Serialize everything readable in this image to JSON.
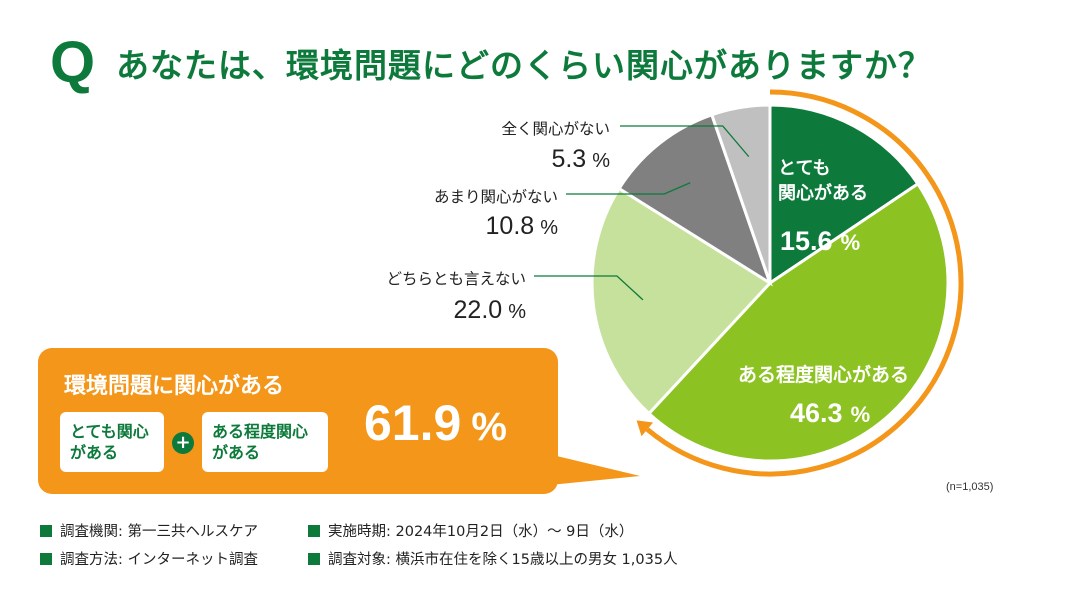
{
  "title": {
    "q": "Q",
    "text": "あなたは、環境問題にどのくらい関心がありますか？"
  },
  "chart_data": {
    "type": "pie",
    "unit": "%",
    "slices": [
      {
        "label": "とても関心がある",
        "display_label": "とても\n関心がある",
        "value": 15.6,
        "color": "#0d7a3c"
      },
      {
        "label": "ある程度関心がある",
        "display_label": "ある程度関心がある",
        "value": 46.3,
        "color": "#8cc221"
      },
      {
        "label": "どちらとも言えない",
        "display_label": "どちらとも言えない",
        "value": 22.0,
        "color": "#c6e19b"
      },
      {
        "label": "あまり関心がない",
        "display_label": "あまり関心がない",
        "value": 10.8,
        "color": "#808080"
      },
      {
        "label": "全く関心がない",
        "display_label": "全く関心がない",
        "value": 5.3,
        "color": "#c0c0c0"
      }
    ],
    "start": "12 o'clock",
    "direction": "clockwise",
    "highlight_arc_color": "#f39619"
  },
  "callout": {
    "title": "環境問題に関心がある",
    "chip1": "とても関心\nがある",
    "plus": "+",
    "chip2": "ある程度関心\nがある",
    "value": "61.9",
    "unit": "%"
  },
  "note": "(n=1,035)",
  "footer": {
    "org": "調査機関: 第一三共ヘルスケア",
    "period": "実施時期: 2024年10月2日（水）〜 9日（水）",
    "method": "調査方法: インターネット調査",
    "target": "調査対象: 横浜市在住を除く15歳以上の男女 1,035人"
  },
  "colors": {
    "accent": "#0d7a3c",
    "callout": "#f39619"
  }
}
